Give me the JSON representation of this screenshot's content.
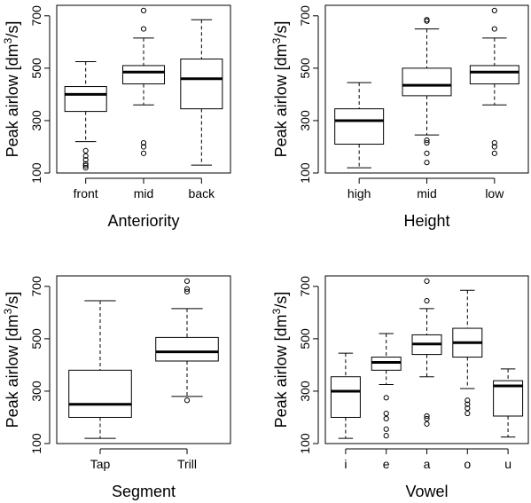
{
  "chart_data": [
    {
      "type": "boxplot",
      "xlabel": "Anteriority",
      "ylabel": "Peak airlow [dm3/s]",
      "ylabel_parts": {
        "main": "Peak airlow [dm",
        "sup": "3",
        "tail": "/s]"
      },
      "ylim": [
        100,
        740
      ],
      "yticks": [
        "100",
        "300",
        "500",
        "700"
      ],
      "categories": [
        "front",
        "mid",
        "back"
      ],
      "boxes": [
        {
          "whislo": 220,
          "q1": 335,
          "med": 400,
          "q3": 430,
          "whishi": 525,
          "fliers": [
            185,
            165,
            150,
            135,
            128,
            120
          ]
        },
        {
          "whislo": 360,
          "q1": 440,
          "med": 485,
          "q3": 510,
          "whishi": 615,
          "fliers": [
            720,
            650,
            215,
            200,
            175
          ]
        },
        {
          "whislo": 130,
          "q1": 345,
          "med": 460,
          "q3": 535,
          "whishi": 685,
          "fliers": []
        }
      ]
    },
    {
      "type": "boxplot",
      "xlabel": "Height",
      "ylabel": "Peak airlow [dm3/s]",
      "ylabel_parts": {
        "main": "Peak airlow [dm",
        "sup": "3",
        "tail": "/s]"
      },
      "ylim": [
        100,
        740
      ],
      "yticks": [
        "100",
        "300",
        "500",
        "700"
      ],
      "categories": [
        "high",
        "mid",
        "low"
      ],
      "boxes": [
        {
          "whislo": 120,
          "q1": 210,
          "med": 300,
          "q3": 345,
          "whishi": 445,
          "fliers": []
        },
        {
          "whislo": 245,
          "q1": 395,
          "med": 435,
          "q3": 500,
          "whishi": 650,
          "fliers": [
            685,
            680,
            225,
            215,
            175,
            140
          ]
        },
        {
          "whislo": 360,
          "q1": 440,
          "med": 485,
          "q3": 510,
          "whishi": 615,
          "fliers": [
            720,
            650,
            215,
            200,
            175
          ]
        }
      ]
    },
    {
      "type": "boxplot",
      "xlabel": "Segment",
      "ylabel": "Peak airlow [dm3/s]",
      "ylabel_parts": {
        "main": "Peak airlow [dm",
        "sup": "3",
        "tail": "/s]"
      },
      "ylim": [
        100,
        740
      ],
      "yticks": [
        "100",
        "300",
        "500",
        "700"
      ],
      "categories": [
        "Tap",
        "Trill"
      ],
      "boxes": [
        {
          "whislo": 120,
          "q1": 200,
          "med": 250,
          "q3": 380,
          "whishi": 645,
          "fliers": []
        },
        {
          "whislo": 280,
          "q1": 415,
          "med": 450,
          "q3": 505,
          "whishi": 615,
          "fliers": [
            720,
            690,
            680,
            265
          ]
        }
      ]
    },
    {
      "type": "boxplot",
      "xlabel": "Vowel",
      "ylabel": "Peak airlow [dm3/s]",
      "ylabel_parts": {
        "main": "Peak airlow [dm",
        "sup": "3",
        "tail": "/s]"
      },
      "ylim": [
        100,
        740
      ],
      "yticks": [
        "100",
        "300",
        "500",
        "700"
      ],
      "categories": [
        "i",
        "e",
        "a",
        "o",
        "u"
      ],
      "boxes": [
        {
          "whislo": 120,
          "q1": 200,
          "med": 300,
          "q3": 355,
          "whishi": 445,
          "fliers": []
        },
        {
          "whislo": 325,
          "q1": 380,
          "med": 410,
          "q3": 430,
          "whishi": 520,
          "fliers": [
            275,
            215,
            195,
            155,
            130
          ]
        },
        {
          "whislo": 355,
          "q1": 440,
          "med": 480,
          "q3": 515,
          "whishi": 615,
          "fliers": [
            720,
            645,
            205,
            195,
            175
          ]
        },
        {
          "whislo": 310,
          "q1": 430,
          "med": 485,
          "q3": 540,
          "whishi": 685,
          "fliers": [
            265,
            250,
            235,
            215
          ]
        },
        {
          "whislo": 125,
          "q1": 205,
          "med": 320,
          "q3": 340,
          "whishi": 385,
          "fliers": []
        }
      ]
    }
  ]
}
